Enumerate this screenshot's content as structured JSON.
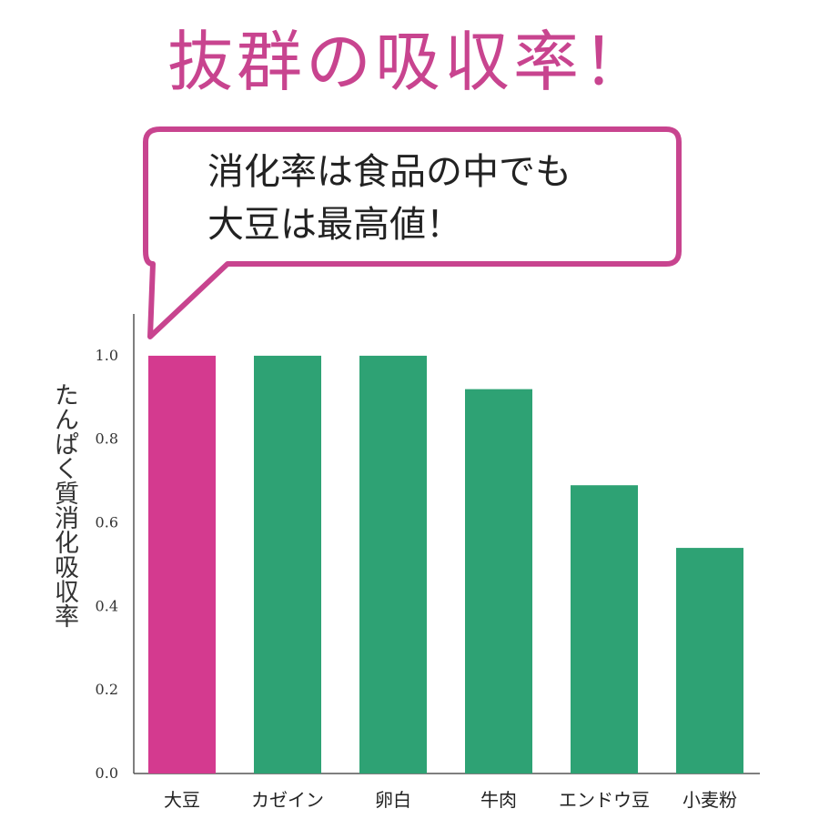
{
  "headline": "抜群の吸収率！",
  "callout": {
    "line1": "消化率は食品の中でも",
    "line2": "大豆は最高値！"
  },
  "colors": {
    "headline": "#c8448f",
    "callout_border": "#c8448f",
    "highlight_bar": "#d43a8f",
    "bar": "#2ea274"
  },
  "chart_data": {
    "type": "bar",
    "ylabel": "たんぱく質消化吸収率",
    "categories": [
      "大豆",
      "カゼイン",
      "卵白",
      "牛肉",
      "エンドウ豆",
      "小麦粉"
    ],
    "values": [
      1.0,
      1.0,
      1.0,
      0.92,
      0.69,
      0.54
    ],
    "highlight_index": 0,
    "ylim": [
      0,
      1.1
    ],
    "yticks": [
      "0.0",
      "0.2",
      "0.4",
      "0.6",
      "0.8",
      "1.0"
    ],
    "grid": false,
    "legend": "none"
  }
}
